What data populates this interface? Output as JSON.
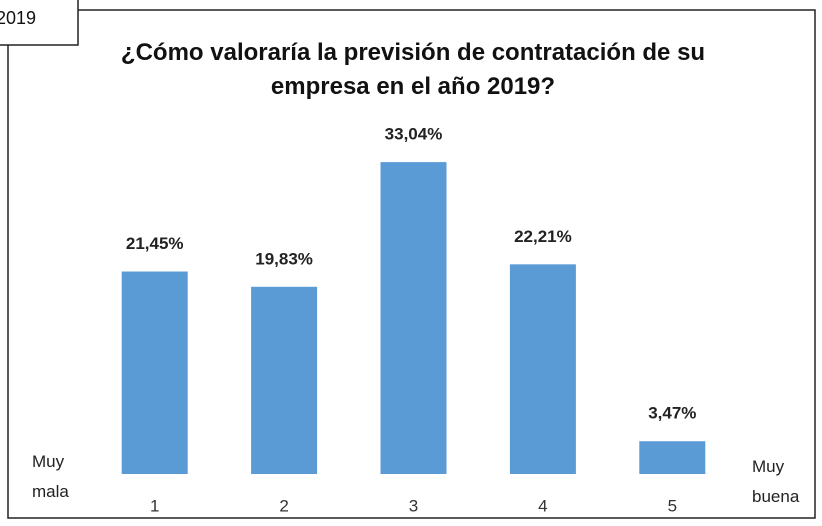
{
  "chart_data": {
    "type": "bar",
    "tab_label": "2019",
    "title": "¿Cómo valoraría la previsión de contratación de su empresa en el año 2019?",
    "categories": [
      "1",
      "2",
      "3",
      "4",
      "5"
    ],
    "values": [
      21.45,
      19.83,
      33.04,
      22.21,
      3.47
    ],
    "value_labels": [
      "21,45%",
      "19,83%",
      "33,04%",
      "22,21%",
      "3,47%"
    ],
    "color": "#5b9bd5",
    "annotations": [
      "Muy mala",
      "Muy buena"
    ]
  }
}
